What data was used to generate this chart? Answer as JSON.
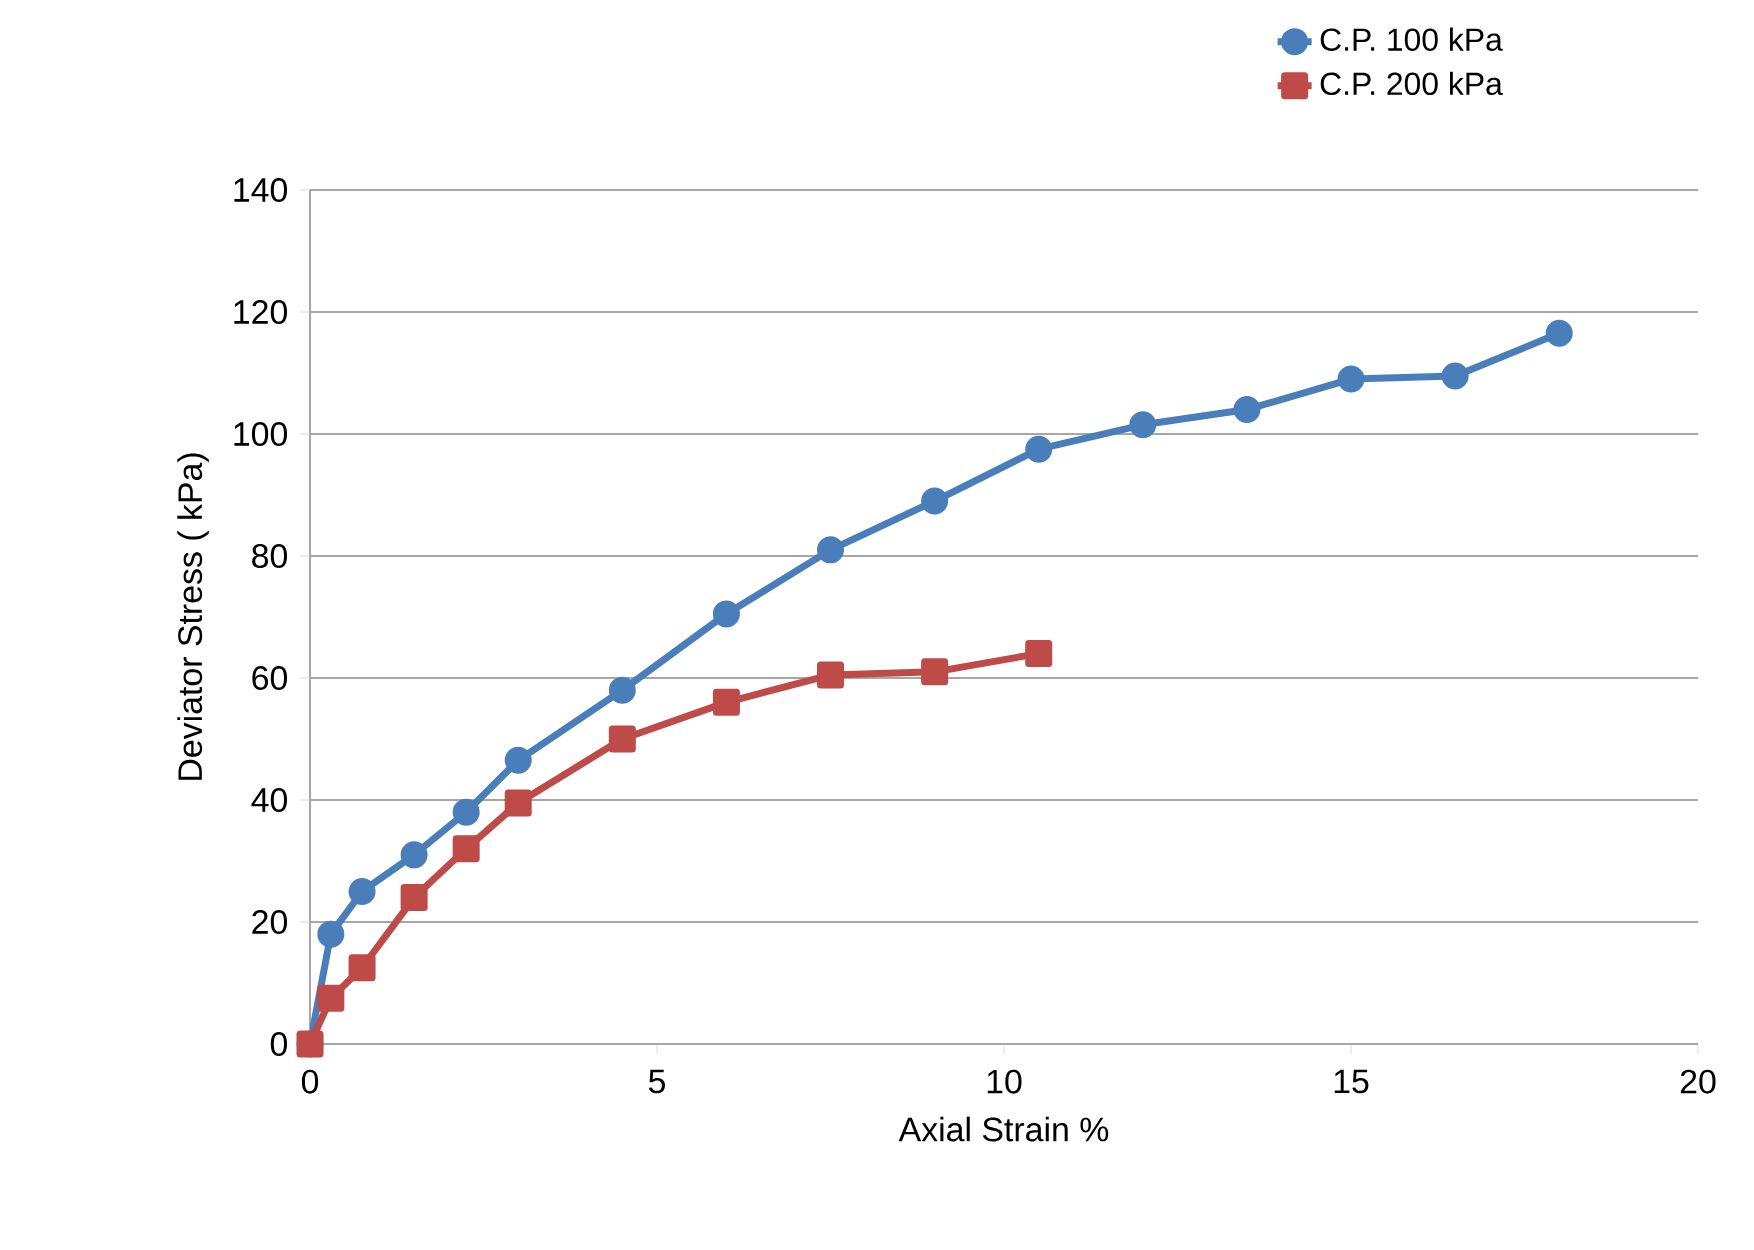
{
  "chart_data": {
    "type": "line",
    "xlabel": "Axial    Strain %",
    "ylabel": "Deviator Stress ( kPa)",
    "xlim": [
      0,
      20
    ],
    "xticks": [
      0,
      5,
      10,
      15,
      20
    ],
    "ylim": [
      0,
      140
    ],
    "yticks": [
      0,
      20,
      40,
      60,
      80,
      100,
      120,
      140
    ],
    "grid": "y",
    "legend": "top right",
    "series": [
      {
        "name": "C.P. 100 kPa",
        "color": "#4a7ebb",
        "marker": "circle",
        "x": [
          0,
          0.3,
          0.75,
          1.5,
          2.25,
          3,
          4.5,
          6,
          7.5,
          9,
          10.5,
          12,
          13.5,
          15,
          16.5,
          18
        ],
        "values": [
          0,
          18,
          25,
          31,
          38,
          46.5,
          58,
          70.5,
          81,
          89,
          97.5,
          101.5,
          104,
          109,
          109.5,
          116.5
        ]
      },
      {
        "name": "C.P. 200 kPa",
        "color": "#be4b48",
        "marker": "square",
        "x": [
          0,
          0.3,
          0.75,
          1.5,
          2.25,
          3,
          4.5,
          6,
          7.5,
          9,
          10.5
        ],
        "values": [
          0,
          7.5,
          12.5,
          24,
          32,
          39.5,
          50,
          56,
          60.5,
          61,
          64
        ]
      }
    ]
  }
}
